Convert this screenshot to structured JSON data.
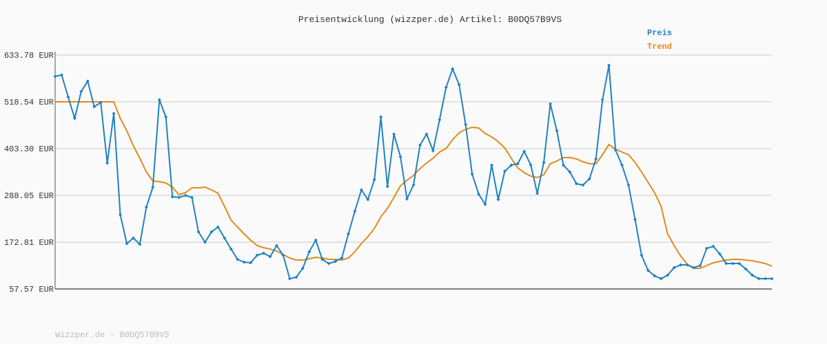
{
  "chart_data": {
    "type": "line",
    "title": "Preisentwicklung (wizzper.de) Artikel: B0DQ57B9VS",
    "footer": "Wizzper.de - B0DQ57B9VS",
    "ylim": [
      57.57,
      633.78
    ],
    "yticks": [
      {
        "value": 57.57,
        "label": "57.57 EUR"
      },
      {
        "value": 172.81,
        "label": "172.81 EUR"
      },
      {
        "value": 288.05,
        "label": "288.05 EUR"
      },
      {
        "value": 403.3,
        "label": "403.30 EUR"
      },
      {
        "value": 518.54,
        "label": "518.54 EUR"
      },
      {
        "value": 633.78,
        "label": "633.78 EUR"
      }
    ],
    "grid": true,
    "series": [
      {
        "name": "Preis",
        "color": "#1f82c0",
        "markers": true,
        "values": [
          581.3,
          584.6,
          530.4,
          477.9,
          544.0,
          569.4,
          506.7,
          516.8,
          367.7,
          489.7,
          240.6,
          169.5,
          183.0,
          167.8,
          259.3,
          308.4,
          523.6,
          481.3,
          284.7,
          283.0,
          288.1,
          283.0,
          198.3,
          172.8,
          198.3,
          210.1,
          183.0,
          155.9,
          130.5,
          123.7,
          122.0,
          140.6,
          145.7,
          137.3,
          164.4,
          140.6,
          83.0,
          86.4,
          108.4,
          149.1,
          177.9,
          130.5,
          120.3,
          125.4,
          133.9,
          193.2,
          249.1,
          301.6,
          277.9,
          327.1,
          481.3,
          310.1,
          438.9,
          383.0,
          279.6,
          313.5,
          411.8,
          438.9,
          398.2,
          474.5,
          554.1,
          599.9,
          560.9,
          462.6,
          340.6,
          291.5,
          266.1,
          362.6,
          277.9,
          347.4,
          362.6,
          366.0,
          396.5,
          362.6,
          293.2,
          369.4,
          513.5,
          447.4,
          362.6,
          345.7,
          316.9,
          313.5,
          328.8,
          377.9,
          523.6,
          608.4,
          399.9,
          362.6,
          313.5,
          228.8,
          140.6,
          103.4,
          89.8,
          83.0,
          91.5,
          110.1,
          116.9,
          116.9,
          110.1,
          115.2,
          157.6,
          162.7,
          144.0,
          120.3,
          120.3,
          120.3,
          106.7,
          91.5,
          83.0,
          83.0,
          83.0
        ]
      },
      {
        "name": "Trend",
        "color": "#e08a1e",
        "markers": false,
        "values": [
          518.5,
          518.5,
          518.5,
          518.5,
          518.5,
          518.5,
          518.5,
          518.5,
          518.5,
          518.5,
          477.9,
          447.4,
          410.1,
          379.6,
          345.7,
          323.7,
          322.0,
          318.6,
          308.4,
          289.7,
          294.8,
          306.7,
          306.7,
          308.4,
          301.6,
          293.2,
          261.0,
          227.1,
          210.1,
          193.2,
          177.9,
          164.4,
          159.3,
          155.9,
          150.8,
          142.3,
          133.9,
          128.8,
          128.8,
          132.2,
          135.6,
          133.9,
          130.5,
          130.5,
          128.8,
          133.9,
          149.1,
          169.5,
          186.4,
          206.7,
          235.6,
          256.0,
          283.0,
          311.8,
          325.4,
          337.2,
          354.2,
          367.7,
          379.6,
          394.8,
          403.3,
          425.3,
          442.3,
          450.8,
          455.9,
          454.2,
          440.6,
          432.1,
          420.3,
          405.0,
          379.6,
          355.9,
          344.0,
          335.5,
          332.2,
          338.9,
          366.0,
          372.8,
          381.3,
          381.3,
          377.9,
          371.1,
          366.0,
          366.0,
          388.1,
          413.5,
          401.6,
          394.8,
          388.1,
          369.4,
          345.7,
          320.3,
          294.8,
          261.0,
          193.2,
          164.4,
          139.0,
          118.6,
          108.4,
          108.4,
          115.2,
          122.0,
          125.4,
          128.8,
          130.5,
          130.5,
          128.8,
          127.1,
          123.7,
          120.3,
          113.5
        ]
      }
    ]
  }
}
